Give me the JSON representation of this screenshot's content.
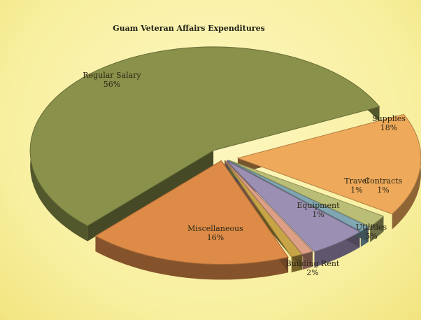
{
  "chart_data": {
    "type": "pie",
    "title": "Guam Veteran Affairs Expenditures",
    "slices": [
      {
        "label": "Regular Salary",
        "pct_label": "56%",
        "value": 56,
        "color": "#8a914a"
      },
      {
        "label": "Supplies",
        "pct_label": "18%",
        "value": 18,
        "color": "#dd8b47"
      },
      {
        "label": "Contracts",
        "pct_label": "1%",
        "value": 1,
        "color": "#c7a445"
      },
      {
        "label": "Travel",
        "pct_label": "1%",
        "value": 1,
        "color": "#dd9f86"
      },
      {
        "label": "Utilities",
        "pct_label": "5%",
        "value": 5,
        "color": "#9b8fb4"
      },
      {
        "label": "Equipment",
        "pct_label": "1%",
        "value": 1,
        "color": "#7fa6b2"
      },
      {
        "label": "Building Rent",
        "pct_label": "2%",
        "value": 2,
        "color": "#b9bd76"
      },
      {
        "label": "Miscellaneous",
        "pct_label": "16%",
        "value": 16,
        "color": "#eea95a"
      }
    ]
  }
}
